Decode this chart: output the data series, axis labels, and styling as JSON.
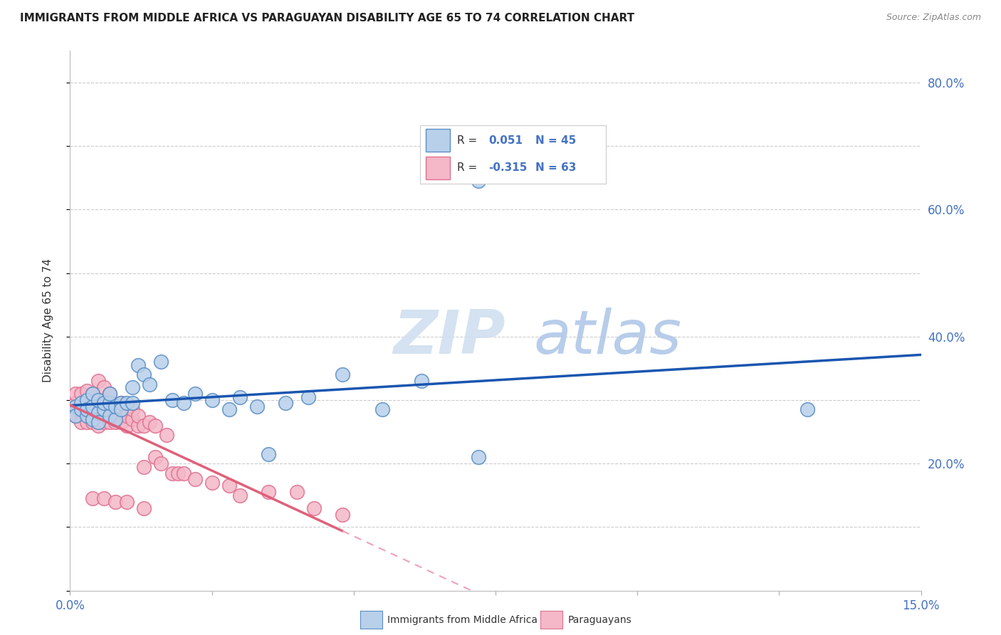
{
  "title": "IMMIGRANTS FROM MIDDLE AFRICA VS PARAGUAYAN DISABILITY AGE 65 TO 74 CORRELATION CHART",
  "source": "Source: ZipAtlas.com",
  "xlabel_blue": "Immigrants from Middle Africa",
  "xlabel_pink": "Paraguayans",
  "ylabel": "Disability Age 65 to 74",
  "xlim": [
    0.0,
    0.15
  ],
  "ylim": [
    0.0,
    0.85
  ],
  "R_blue": 0.051,
  "N_blue": 45,
  "R_pink": -0.315,
  "N_pink": 63,
  "color_blue_fill": "#b8d0ea",
  "color_blue_edge": "#5b8ec4",
  "color_blue_line": "#1a56b0",
  "color_pink_fill": "#f4b8c8",
  "color_pink_edge": "#e07090",
  "color_pink_line": "#e0607a",
  "color_pink_dashed": "#f0a0b8",
  "background": "#ffffff",
  "grid_color": "#cccccc",
  "blue_x": [
    0.001,
    0.001,
    0.002,
    0.002,
    0.003,
    0.003,
    0.003,
    0.004,
    0.004,
    0.004,
    0.005,
    0.005,
    0.005,
    0.006,
    0.006,
    0.007,
    0.007,
    0.007,
    0.008,
    0.008,
    0.009,
    0.009,
    0.01,
    0.011,
    0.011,
    0.012,
    0.013,
    0.014,
    0.016,
    0.018,
    0.02,
    0.022,
    0.025,
    0.028,
    0.03,
    0.033,
    0.035,
    0.038,
    0.042,
    0.048,
    0.055,
    0.062,
    0.072,
    0.13,
    0.072
  ],
  "blue_y": [
    0.29,
    0.275,
    0.285,
    0.295,
    0.275,
    0.3,
    0.285,
    0.27,
    0.29,
    0.31,
    0.28,
    0.3,
    0.265,
    0.285,
    0.295,
    0.275,
    0.295,
    0.31,
    0.27,
    0.29,
    0.295,
    0.285,
    0.295,
    0.32,
    0.295,
    0.355,
    0.34,
    0.325,
    0.36,
    0.3,
    0.295,
    0.31,
    0.3,
    0.285,
    0.305,
    0.29,
    0.215,
    0.295,
    0.305,
    0.34,
    0.285,
    0.33,
    0.645,
    0.285,
    0.21
  ],
  "pink_x": [
    0.001,
    0.001,
    0.001,
    0.002,
    0.002,
    0.002,
    0.002,
    0.003,
    0.003,
    0.003,
    0.003,
    0.003,
    0.004,
    0.004,
    0.004,
    0.004,
    0.005,
    0.005,
    0.005,
    0.005,
    0.006,
    0.006,
    0.006,
    0.006,
    0.007,
    0.007,
    0.007,
    0.007,
    0.008,
    0.008,
    0.008,
    0.009,
    0.009,
    0.009,
    0.01,
    0.01,
    0.011,
    0.011,
    0.012,
    0.012,
    0.013,
    0.013,
    0.014,
    0.015,
    0.015,
    0.016,
    0.017,
    0.018,
    0.019,
    0.02,
    0.022,
    0.025,
    0.028,
    0.03,
    0.035,
    0.04,
    0.043,
    0.004,
    0.006,
    0.008,
    0.01,
    0.013,
    0.048
  ],
  "pink_y": [
    0.295,
    0.31,
    0.275,
    0.29,
    0.28,
    0.265,
    0.31,
    0.29,
    0.275,
    0.3,
    0.315,
    0.265,
    0.28,
    0.295,
    0.265,
    0.31,
    0.275,
    0.29,
    0.26,
    0.33,
    0.285,
    0.3,
    0.265,
    0.32,
    0.28,
    0.295,
    0.265,
    0.31,
    0.275,
    0.29,
    0.265,
    0.28,
    0.265,
    0.295,
    0.26,
    0.275,
    0.27,
    0.285,
    0.26,
    0.275,
    0.195,
    0.26,
    0.265,
    0.21,
    0.26,
    0.2,
    0.245,
    0.185,
    0.185,
    0.185,
    0.175,
    0.17,
    0.165,
    0.15,
    0.155,
    0.155,
    0.13,
    0.145,
    0.145,
    0.14,
    0.14,
    0.13,
    0.12
  ],
  "legend_R_blue_text": "R =  0.051",
  "legend_N_blue_text": "N = 45",
  "legend_R_pink_text": "R = -0.315",
  "legend_N_pink_text": "N = 63"
}
